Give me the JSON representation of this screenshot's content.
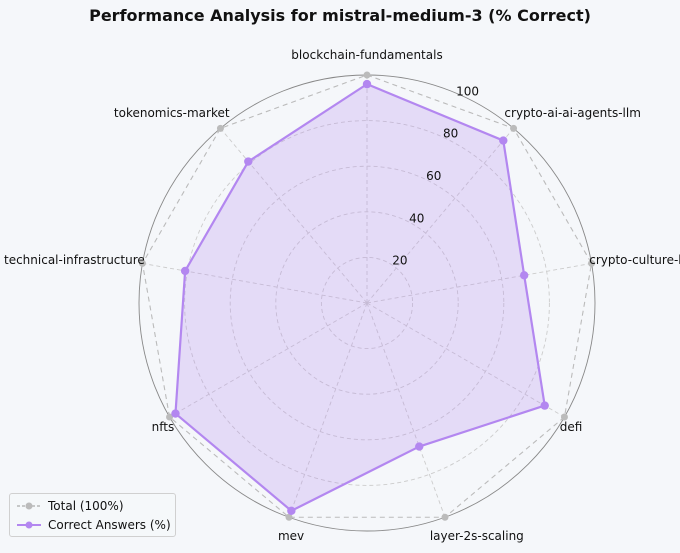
{
  "chart_data": {
    "type": "radar",
    "title": "Performance Analysis for mistral-medium-3 (% Correct)",
    "categories": [
      "blockchain-fundamentals",
      "crypto-ai-ai-agents-llm",
      "crypto-culture-history",
      "defi",
      "layer-2s-scaling",
      "mev",
      "nfts",
      "technical-infrastructure",
      "tokenomics-market"
    ],
    "series": [
      {
        "name": "Total (100%)",
        "values": [
          100,
          100,
          100,
          100,
          100,
          100,
          100,
          100,
          100
        ],
        "color": "#aaaaaa"
      },
      {
        "name": "Correct Answers (%)",
        "values": [
          96,
          93,
          70,
          90,
          67,
          97,
          97,
          81,
          81
        ],
        "color": "#b387f0"
      }
    ],
    "rlim": [
      0,
      100
    ],
    "rticks": [
      "20",
      "40",
      "60",
      "80",
      "100"
    ],
    "grid": true,
    "legend_position": "lower-left"
  }
}
